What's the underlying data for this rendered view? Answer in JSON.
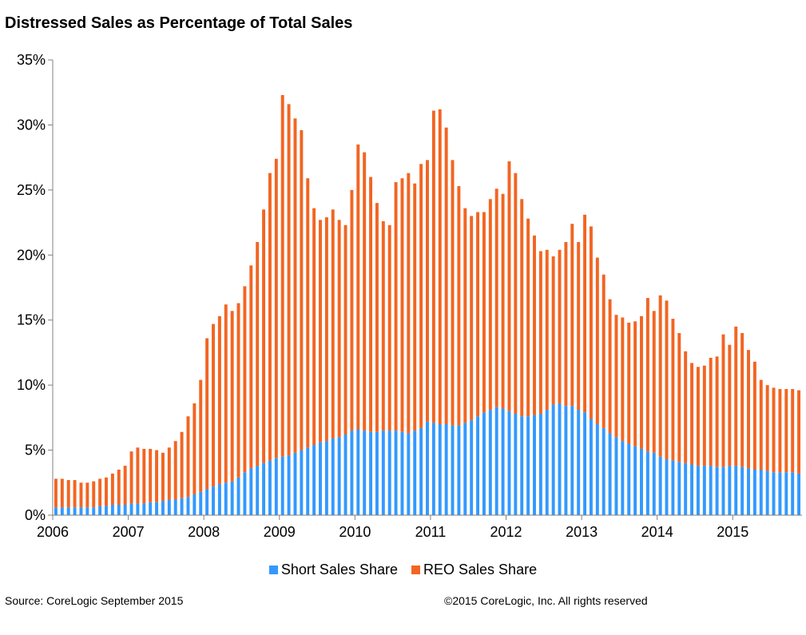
{
  "title": "Distressed Sales as Percentage of Total Sales",
  "source": "Source: CoreLogic September 2015",
  "copyright": "©2015 CoreLogic, Inc. All rights reserved",
  "colors": {
    "short": "#3399ff",
    "reo": "#f26522",
    "axis": "#808080"
  },
  "chart_data": {
    "type": "bar",
    "stacked": true,
    "title": "Distressed Sales as Percentage of Total Sales",
    "xlabel": "",
    "ylabel": "",
    "ylim": [
      0,
      35
    ],
    "yticks": [
      "0%",
      "5%",
      "10%",
      "15%",
      "20%",
      "25%",
      "30%",
      "35%"
    ],
    "xticks": [
      "2006",
      "2007",
      "2008",
      "2009",
      "2010",
      "2011",
      "2012",
      "2013",
      "2014",
      "2015"
    ],
    "legend_position": "bottom",
    "grid": false,
    "series": [
      {
        "name": "Short Sales Share",
        "color": "#3399ff",
        "values": [
          0.6,
          0.6,
          0.6,
          0.6,
          0.6,
          0.6,
          0.6,
          0.7,
          0.7,
          0.8,
          0.8,
          0.8,
          0.9,
          0.9,
          0.9,
          1.0,
          1.0,
          1.1,
          1.2,
          1.2,
          1.3,
          1.4,
          1.6,
          1.8,
          2.0,
          2.2,
          2.4,
          2.5,
          2.6,
          2.9,
          3.3,
          3.6,
          3.8,
          4.0,
          4.2,
          4.4,
          4.5,
          4.6,
          4.8,
          5.0,
          5.2,
          5.4,
          5.6,
          5.7,
          5.9,
          6.0,
          6.2,
          6.5,
          6.6,
          6.5,
          6.4,
          6.4,
          6.5,
          6.5,
          6.5,
          6.4,
          6.3,
          6.5,
          6.7,
          7.2,
          7.1,
          7.0,
          7.0,
          6.9,
          6.9,
          7.1,
          7.3,
          7.6,
          7.9,
          8.1,
          8.3,
          8.2,
          8.0,
          7.8,
          7.6,
          7.6,
          7.7,
          7.8,
          8.1,
          8.5,
          8.6,
          8.4,
          8.4,
          8.1,
          7.9,
          7.4,
          7.0,
          6.7,
          6.3,
          6.0,
          5.7,
          5.5,
          5.3,
          5.1,
          4.9,
          4.8,
          4.5,
          4.3,
          4.2,
          4.1,
          4.0,
          3.9,
          3.8,
          3.8,
          3.8,
          3.7,
          3.7,
          3.8,
          3.8,
          3.7,
          3.6,
          3.5,
          3.5,
          3.4,
          3.3,
          3.3,
          3.3,
          3.3,
          3.2
        ]
      },
      {
        "name": "REO Sales Share",
        "color": "#f26522",
        "totals": [
          2.8,
          2.8,
          2.7,
          2.7,
          2.5,
          2.5,
          2.6,
          2.8,
          2.9,
          3.2,
          3.5,
          3.8,
          4.9,
          5.2,
          5.1,
          5.1,
          5.0,
          4.8,
          5.2,
          5.7,
          6.4,
          7.6,
          8.6,
          10.4,
          13.6,
          14.7,
          15.3,
          16.2,
          15.7,
          16.3,
          17.6,
          19.2,
          21.0,
          23.5,
          26.3,
          27.4,
          32.3,
          31.6,
          30.5,
          29.6,
          25.9,
          23.6,
          22.7,
          22.9,
          23.5,
          22.7,
          22.3,
          25.0,
          28.5,
          27.9,
          26.0,
          24.0,
          22.6,
          22.3,
          25.6,
          25.9,
          26.3,
          25.5,
          27.0,
          27.3,
          31.1,
          31.2,
          29.8,
          27.3,
          25.3,
          23.6,
          23.0,
          23.3,
          23.3,
          24.3,
          25.1,
          24.7,
          27.2,
          26.3,
          24.3,
          22.8,
          21.5,
          20.3,
          20.4,
          19.9,
          20.4,
          21.0,
          22.4,
          21.0,
          23.1,
          22.2,
          19.8,
          18.5,
          16.6,
          15.4,
          15.2,
          14.8,
          14.9,
          15.3,
          16.7,
          15.7,
          16.9,
          16.5,
          15.1,
          14.0,
          12.6,
          11.7,
          11.4,
          11.5,
          12.1,
          12.2,
          13.9,
          13.1,
          14.5,
          14.0,
          12.7,
          11.8,
          10.4,
          10.0,
          9.8,
          9.7,
          9.7,
          9.7,
          9.6
        ]
      }
    ]
  }
}
